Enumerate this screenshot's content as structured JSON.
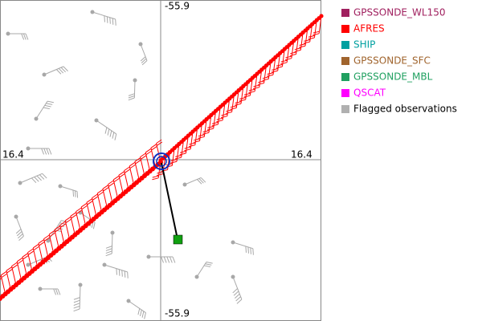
{
  "plot": {
    "top_label": "-55.9",
    "bottom_label": "-55.9",
    "left_label": "16.4",
    "right_label": "16.4"
  },
  "legend": [
    {
      "label": "GPSSONDE_WL150",
      "color": "#a0205f",
      "text_color": "#a0205f"
    },
    {
      "label": "AFRES",
      "color": "#ff0000",
      "text_color": "#ff0000"
    },
    {
      "label": "SHIP",
      "color": "#00a0a0",
      "text_color": "#00a0a0"
    },
    {
      "label": "GPSSONDE_SFC",
      "color": "#a0642d",
      "text_color": "#a0642d"
    },
    {
      "label": "GPSSONDE_MBL",
      "color": "#20a060",
      "text_color": "#20a060"
    },
    {
      "label": "QSCAT",
      "color": "#ff00ff",
      "text_color": "#ff00ff"
    },
    {
      "label": "Flagged observations",
      "color": "#b0b0b0",
      "text_color": "#000000"
    }
  ]
}
